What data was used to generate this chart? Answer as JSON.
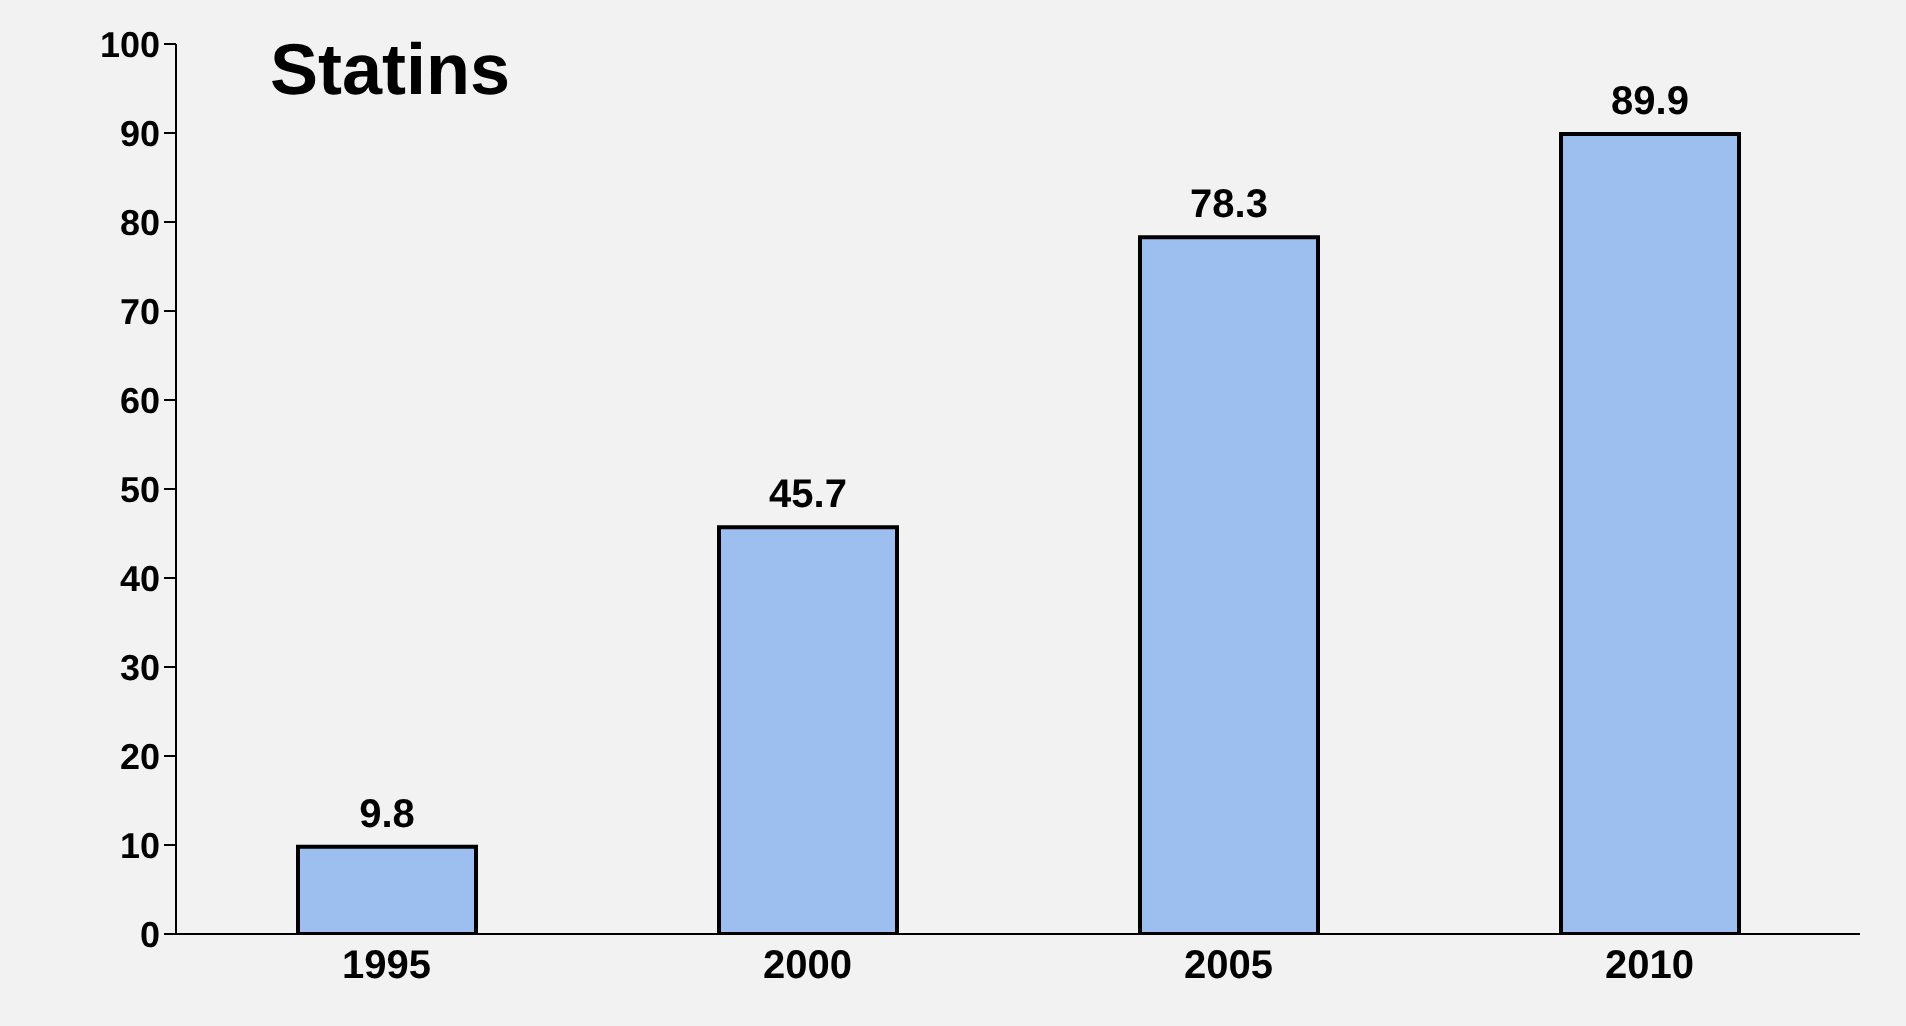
{
  "chart_data": {
    "type": "bar",
    "title": "Statins",
    "categories": [
      "1995",
      "2000",
      "2005",
      "2010"
    ],
    "values": [
      9.8,
      45.7,
      78.3,
      89.9
    ],
    "color": "#9dbff0",
    "ylim": [
      0,
      100
    ],
    "yticks": [
      0,
      10,
      20,
      30,
      40,
      50,
      60,
      70,
      80,
      90,
      100
    ],
    "data_labels": true,
    "grid": false,
    "legend": false
  }
}
